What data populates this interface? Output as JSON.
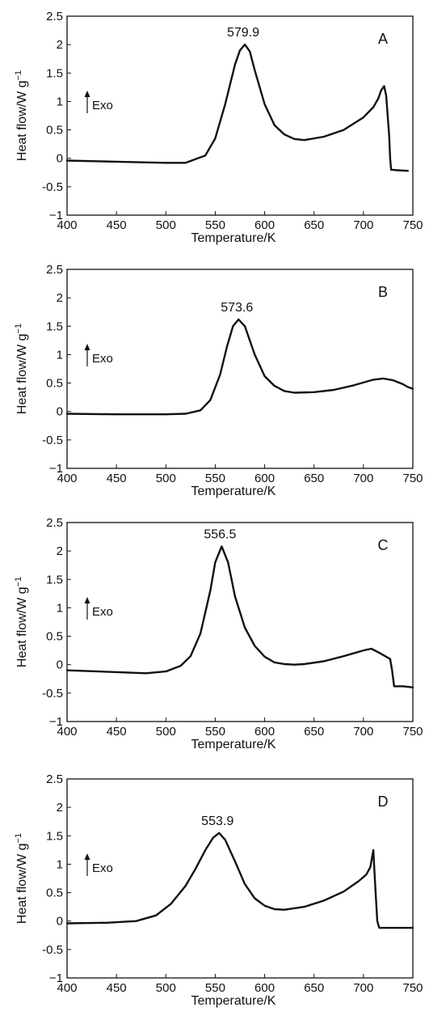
{
  "figure": {
    "line_color": "#111111",
    "background": "#ffffff"
  },
  "chart_data": [
    {
      "type": "line",
      "panel_label": "A",
      "peak_label": "579.9",
      "exo_label": "Exo",
      "xlabel": "Temperature/K",
      "ylabel": "Heat flow/W g",
      "ylabel_sup": "−1",
      "xlim": [
        400,
        750
      ],
      "ylim": [
        -1,
        2.5
      ],
      "xticks": [
        "400",
        "450",
        "500",
        "550",
        "600",
        "650",
        "700",
        "750"
      ],
      "yticks": [
        "2.5",
        "2",
        "1.5",
        "1",
        "0.5",
        "0",
        "-0.5",
        "−1"
      ],
      "series": [
        {
          "x": [
            400,
            450,
            500,
            520,
            540,
            550,
            560,
            570,
            575,
            580,
            585,
            590,
            600,
            610,
            620,
            630,
            640,
            660,
            680,
            700,
            710,
            715,
            718,
            721,
            723,
            726,
            727,
            728,
            735,
            745
          ],
          "y": [
            -0.04,
            -0.06,
            -0.08,
            -0.08,
            0.05,
            0.35,
            0.95,
            1.65,
            1.9,
            2.0,
            1.88,
            1.55,
            0.95,
            0.58,
            0.42,
            0.34,
            0.32,
            0.38,
            0.5,
            0.72,
            0.9,
            1.05,
            1.2,
            1.27,
            1.1,
            0.4,
            0.0,
            -0.2,
            -0.21,
            -0.22
          ]
        }
      ]
    },
    {
      "type": "line",
      "panel_label": "B",
      "peak_label": "573.6",
      "exo_label": "Exo",
      "xlabel": "Temperature/K",
      "ylabel": "Heat flow/W g",
      "ylabel_sup": "−1",
      "xlim": [
        400,
        750
      ],
      "ylim": [
        -1,
        2.5
      ],
      "xticks": [
        "400",
        "450",
        "500",
        "550",
        "600",
        "650",
        "700",
        "750"
      ],
      "yticks": [
        "2.5",
        "2",
        "1.5",
        "1",
        "0.5",
        "0",
        "-0.5",
        "−1"
      ],
      "series": [
        {
          "x": [
            400,
            450,
            500,
            520,
            535,
            545,
            555,
            562,
            568,
            573.6,
            580,
            590,
            600,
            610,
            620,
            630,
            650,
            670,
            690,
            700,
            710,
            720,
            730,
            740,
            745,
            750
          ],
          "y": [
            -0.04,
            -0.05,
            -0.05,
            -0.04,
            0.02,
            0.2,
            0.65,
            1.15,
            1.5,
            1.62,
            1.5,
            1.0,
            0.62,
            0.45,
            0.36,
            0.33,
            0.34,
            0.38,
            0.46,
            0.51,
            0.56,
            0.58,
            0.55,
            0.48,
            0.43,
            0.4
          ]
        }
      ]
    },
    {
      "type": "line",
      "panel_label": "C",
      "peak_label": "556.5",
      "exo_label": "Exo",
      "xlabel": "Temperature/K",
      "ylabel": "Heat flow/W g",
      "ylabel_sup": "−1",
      "xlim": [
        400,
        750
      ],
      "ylim": [
        -1,
        2.5
      ],
      "xticks": [
        "400",
        "450",
        "500",
        "550",
        "600",
        "650",
        "700",
        "750"
      ],
      "yticks": [
        "2.5",
        "2",
        "1.5",
        "1",
        "0.5",
        "0",
        "-0.5",
        "−1"
      ],
      "series": [
        {
          "x": [
            400,
            450,
            480,
            500,
            515,
            525,
            535,
            545,
            550,
            556.5,
            563,
            570,
            580,
            590,
            600,
            610,
            620,
            630,
            640,
            660,
            680,
            700,
            708,
            715,
            722,
            727,
            729,
            731,
            740,
            750
          ],
          "y": [
            -0.1,
            -0.13,
            -0.15,
            -0.12,
            -0.02,
            0.15,
            0.55,
            1.3,
            1.8,
            2.08,
            1.8,
            1.2,
            0.65,
            0.33,
            0.14,
            0.04,
            0.01,
            0.0,
            0.01,
            0.06,
            0.15,
            0.25,
            0.28,
            0.22,
            0.15,
            0.1,
            -0.1,
            -0.38,
            -0.38,
            -0.4
          ]
        }
      ]
    },
    {
      "type": "line",
      "panel_label": "D",
      "peak_label": "553.9",
      "exo_label": "Exo",
      "xlabel": "Temperature/K",
      "ylabel": "Heat flow/W g",
      "ylabel_sup": "−1",
      "xlim": [
        400,
        750
      ],
      "ylim": [
        -1,
        2.5
      ],
      "xticks": [
        "400",
        "450",
        "500",
        "550",
        "600",
        "650",
        "700",
        "750"
      ],
      "yticks": [
        "2.5",
        "2",
        "1.5",
        "1",
        "0.5",
        "0",
        "-0.5",
        "−1"
      ],
      "series": [
        {
          "x": [
            400,
            440,
            470,
            490,
            505,
            520,
            530,
            540,
            548,
            553.9,
            560,
            570,
            580,
            590,
            600,
            610,
            620,
            640,
            660,
            680,
            695,
            703,
            707,
            710,
            712,
            714,
            716,
            730,
            750
          ],
          "y": [
            -0.04,
            -0.03,
            0.0,
            0.1,
            0.3,
            0.62,
            0.92,
            1.25,
            1.47,
            1.55,
            1.43,
            1.05,
            0.65,
            0.4,
            0.27,
            0.21,
            0.2,
            0.25,
            0.36,
            0.52,
            0.7,
            0.82,
            0.95,
            1.25,
            0.6,
            0.0,
            -0.12,
            -0.12,
            -0.12
          ]
        }
      ]
    }
  ]
}
